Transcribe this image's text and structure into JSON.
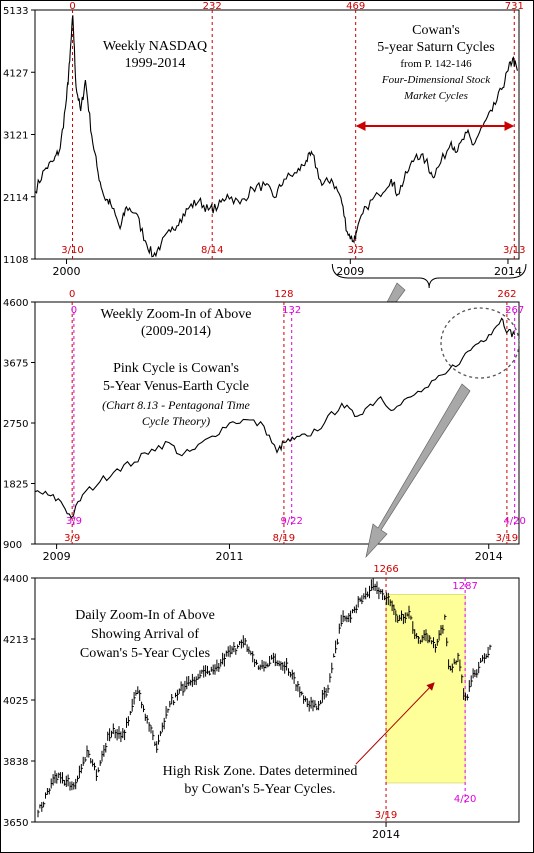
{
  "colors": {
    "red": "#cc0000",
    "magenta": "#dd00dd",
    "zone_fill": "#ffff99",
    "arrow_gray": "#a0a0a0",
    "price": "#000000"
  },
  "chart_data": [
    {
      "type": "line",
      "name_on_chart": "Weekly NASDAQ",
      "title": "Weekly NASDAQ",
      "subtitle": "1999-2014",
      "ylim": [
        1108,
        5133
      ],
      "yticks": [
        "5133",
        "4127",
        "3121",
        "2114",
        "1108"
      ],
      "xlim": [
        1999.0,
        2014.35
      ],
      "xticks": [
        {
          "label": "2000",
          "x": 2000.0
        },
        {
          "label": "2009",
          "x": 2009.0
        },
        {
          "label": "2014",
          "x": 2014.0
        }
      ],
      "series": [
        {
          "x": [
            1999.0,
            1999.3,
            1999.6,
            1999.8,
            2000.0,
            2000.1,
            2000.2,
            2000.3,
            2000.45,
            2000.6,
            2000.8,
            2001.0,
            2001.2,
            2001.4,
            2001.7,
            2001.9,
            2002.2,
            2002.5,
            2002.75,
            2003.0,
            2003.3,
            2003.6,
            2003.9,
            2004.2,
            2004.5,
            2004.8,
            2005.1,
            2005.5,
            2005.9,
            2006.3,
            2006.6,
            2006.9,
            2007.3,
            2007.6,
            2007.8,
            2008.1,
            2008.4,
            2008.7,
            2008.9,
            2009.1,
            2009.2,
            2009.5,
            2009.9,
            2010.3,
            2010.5,
            2010.8,
            2011.1,
            2011.4,
            2011.6,
            2011.8,
            2012.2,
            2012.4,
            2012.7,
            2012.9,
            2013.2,
            2013.5,
            2013.8,
            2014.0,
            2014.15,
            2014.3
          ],
          "y": [
            2200,
            2550,
            2700,
            2900,
            3700,
            4300,
            5048,
            3900,
            3500,
            4000,
            3100,
            2500,
            2100,
            2000,
            1600,
            1950,
            1850,
            1400,
            1150,
            1350,
            1550,
            1750,
            1950,
            2050,
            1900,
            1950,
            2150,
            2000,
            2250,
            2300,
            2100,
            2400,
            2500,
            2700,
            2800,
            2300,
            2400,
            2100,
            1550,
            1400,
            1550,
            1950,
            2150,
            2400,
            2150,
            2500,
            2800,
            2700,
            2450,
            2600,
            3000,
            2850,
            3150,
            2950,
            3250,
            3500,
            3850,
            4150,
            4350,
            4150
          ]
        }
      ],
      "cycles": [
        {
          "count": "0",
          "date": "3/10",
          "x": 2000.19
        },
        {
          "count": "232",
          "date": "8/14",
          "x": 2004.62
        },
        {
          "count": "469",
          "date": "3/3",
          "x": 2009.17
        },
        {
          "count": "731",
          "date": "3/13",
          "x": 2014.2
        }
      ],
      "annotation": {
        "heading1": "Cowan's",
        "heading2": "5-year Saturn Cycles",
        "source": "from P. 142-146",
        "book1": "Four-Dimensional Stock",
        "book2": "Market Cycles"
      },
      "bracket_from": 2009.0,
      "bracket_to": 2014.0
    },
    {
      "type": "line",
      "title": "Weekly Zoom-In of Above",
      "subtitle": "(2009-2014)",
      "ylim": [
        900,
        4600
      ],
      "yticks": [
        "4600",
        "3675",
        "2750",
        "1825",
        "900"
      ],
      "xlim": [
        2008.75,
        2014.35
      ],
      "xticks": [
        {
          "label": "2009",
          "x": 2009.0
        },
        {
          "label": "2011",
          "x": 2011.0
        },
        {
          "label": "2014",
          "x": 2014.0
        }
      ],
      "series": [
        {
          "x": [
            2008.75,
            2008.9,
            2009.05,
            2009.17,
            2009.3,
            2009.5,
            2009.7,
            2009.9,
            2010.1,
            2010.3,
            2010.45,
            2010.6,
            2010.8,
            2011.0,
            2011.2,
            2011.4,
            2011.55,
            2011.63,
            2011.75,
            2011.9,
            2012.1,
            2012.3,
            2012.45,
            2012.6,
            2012.75,
            2012.9,
            2013.1,
            2013.3,
            2013.5,
            2013.7,
            2013.85,
            2014.0,
            2014.15,
            2014.22,
            2014.3
          ],
          "y": [
            1700,
            1650,
            1550,
            1300,
            1650,
            1850,
            2050,
            2150,
            2350,
            2450,
            2250,
            2350,
            2550,
            2750,
            2800,
            2700,
            2300,
            2450,
            2500,
            2550,
            2750,
            3050,
            2850,
            3000,
            3150,
            2950,
            3150,
            3300,
            3500,
            3750,
            3950,
            4100,
            4350,
            4150,
            4100
          ]
        }
      ],
      "red_cycles": [
        {
          "count": "0",
          "date": "3/9",
          "x": 2009.18
        },
        {
          "count": "128",
          "date": "8/19",
          "x": 2011.63
        },
        {
          "count": "262",
          "date": "3/19",
          "x": 2014.21
        }
      ],
      "pink_cycles": [
        {
          "count": "0",
          "date": "3/9",
          "x": 2009.2
        },
        {
          "count": "132",
          "date": "9/22",
          "x": 2011.72
        },
        {
          "count": "267",
          "date": "4/20",
          "x": 2014.3
        }
      ],
      "annotation": {
        "line1": "Pink Cycle is Cowan's",
        "line2": "5-Year Venus-Earth Cycle",
        "chart_ref1": "(Chart 8.13 - Pentagonal Time",
        "chart_ref2": "Cycle Theory)"
      }
    },
    {
      "type": "line",
      "title": "Daily Zoom-In of Above",
      "subtitle": "Showing Arrival of",
      "subtitle2": "Cowan's 5-Year Cycles",
      "ylim": [
        3650,
        4400
      ],
      "yticks": [
        "4400",
        "4213",
        "4025",
        "3838",
        "3650"
      ],
      "xlim": [
        0,
        100
      ],
      "xticks": [
        {
          "label": "2014",
          "x": 77
        }
      ],
      "series": [
        {
          "x": [
            0,
            4,
            8,
            11,
            13,
            16,
            19,
            22,
            26,
            29,
            33,
            37,
            40,
            43,
            46,
            49,
            52,
            55,
            58,
            61,
            64,
            67,
            70,
            72,
            74,
            77,
            80,
            82,
            84,
            86,
            88,
            90,
            91,
            93,
            94.5,
            96,
            98,
            100
          ],
          "y": [
            3680,
            3790,
            3760,
            3870,
            3800,
            3930,
            3920,
            4060,
            3880,
            4010,
            4080,
            4110,
            4130,
            4180,
            4200,
            4120,
            4150,
            4130,
            4050,
            4000,
            4050,
            4270,
            4300,
            4340,
            4380,
            4340,
            4270,
            4300,
            4200,
            4230,
            4180,
            4270,
            4120,
            4150,
            4020,
            4090,
            4140,
            4180
          ]
        }
      ],
      "red_cycle": {
        "count": "1266",
        "date": "3/19",
        "x": 77
      },
      "pink_cycle": {
        "count": "1287",
        "date": "4/20",
        "x": 94.5
      },
      "zone_from": 77,
      "zone_to": 94.5,
      "zone_ylim": [
        3770,
        4350
      ],
      "annotation": {
        "line1": "High Risk Zone. Dates determined",
        "line2": "by Cowan's 5-Year Cycles."
      }
    }
  ]
}
